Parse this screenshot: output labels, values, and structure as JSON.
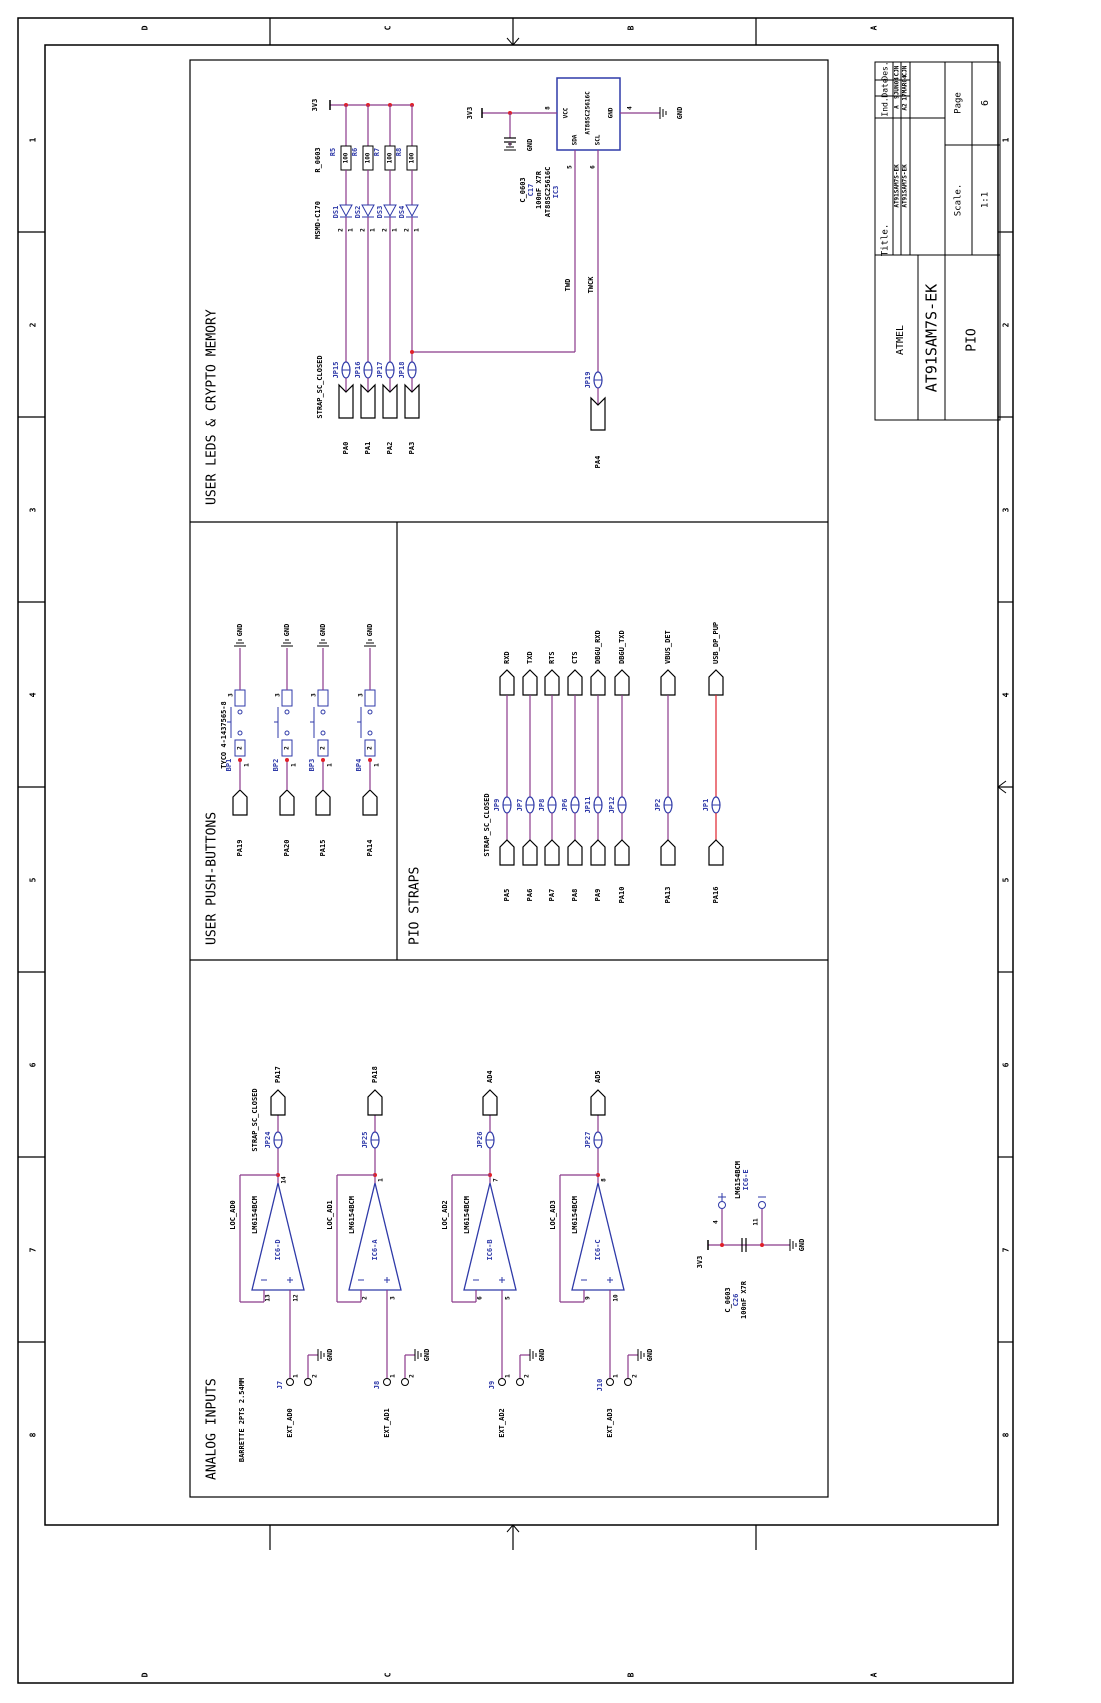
{
  "frame": {
    "columns": [
      "D",
      "C",
      "B",
      "A"
    ],
    "rows": [
      "1",
      "2",
      "3",
      "4",
      "5",
      "6",
      "7",
      "8"
    ]
  },
  "title_block": {
    "title_label": "Title.",
    "titles": [
      "AT91SAM7S-EK",
      "AT91SAM7S-EK"
    ],
    "headers": [
      "Ind.",
      "Date",
      "Des."
    ],
    "revisions": [
      [
        "A",
        "9JUN04",
        "CJN"
      ],
      [
        "A2",
        "17MAR04",
        "CJN"
      ]
    ],
    "company": "ATMEL",
    "board": "AT91SAM7S-EK",
    "sheet": "PIO",
    "scale_label": "Scale.",
    "scale": "1:1",
    "page_label": "Page",
    "page": "6"
  },
  "leds": {
    "title": "USER LEDS & CRYPTO MEMORY",
    "supply": "3V3",
    "resistor_package": "R_0603",
    "resistors": [
      "R5",
      "R6",
      "R7",
      "R8"
    ],
    "resistor_value": "100",
    "led_part": "MSMD-C170",
    "leds": [
      "DS1",
      "DS2",
      "DS3",
      "DS4"
    ],
    "led_pins": [
      "2",
      "1"
    ],
    "strap": "STRAP_SC_CLOSED",
    "jumpers": [
      "JP15",
      "JP16",
      "JP17",
      "JP18"
    ],
    "ports": [
      "PA0",
      "PA1",
      "PA2",
      "PA3"
    ],
    "memory": {
      "part": "AT88SC25616C",
      "ref": "IC3",
      "pins": [
        "VCC",
        "SDA",
        "SCL",
        "GND"
      ],
      "pin_numbers": [
        "8",
        "5",
        "6",
        "4"
      ],
      "supply": "3V3",
      "ground": "GND",
      "cap_package": "C_0603",
      "cap_ref": "C17",
      "cap_value": "100nF X7R",
      "cap_ground": "GND",
      "nets": [
        "TWD",
        "TWCK"
      ],
      "jumper": "JP19",
      "port": "PA4"
    }
  },
  "buttons": {
    "title": "USER PUSH-BUTTONS",
    "part": "TYCO 4-1437565-8",
    "buttons": [
      "BP1",
      "BP2",
      "BP3",
      "BP4"
    ],
    "ports": [
      "PA19",
      "PA20",
      "PA15",
      "PA14"
    ],
    "ground": "GND",
    "pin_numbers": [
      "1",
      "2",
      "3"
    ]
  },
  "straps": {
    "title": "PIO STRAPS",
    "strap": "STRAP_SC_CLOSED",
    "jumpers": [
      "JP9",
      "JP7",
      "JP8",
      "JP6",
      "JP11",
      "JP12",
      "JP2",
      "JP1"
    ],
    "ports": [
      "PA5",
      "PA6",
      "PA7",
      "PA8",
      "PA9",
      "PA10",
      "PA13",
      "PA16"
    ],
    "signals": [
      "RXD",
      "TXD",
      "RTS",
      "CTS",
      "DBGU_RXD",
      "DBGU_TXD",
      "VBUS_DET",
      "USB_DP_PUP"
    ]
  },
  "analog": {
    "title": "ANALOG INPUTS",
    "connector_part": "BARRETTE 2PTS 2.54MM",
    "strap": "STRAP_SC_CLOSED",
    "amp_part": "LM6154BCM",
    "ground": "GND",
    "connector_pins": [
      "1",
      "2"
    ],
    "channels": [
      {
        "ref": "IC6-D",
        "loc": "LOC_AD0",
        "jumper": "JP24",
        "port": "PA17",
        "connector": "J7",
        "input": "EXT_AD0",
        "pins": [
          "13",
          "12",
          "14"
        ]
      },
      {
        "ref": "IC6-A",
        "loc": "LOC_AD1",
        "jumper": "JP25",
        "port": "PA18",
        "connector": "J8",
        "input": "EXT_AD1",
        "pins": [
          "2",
          "3",
          "1"
        ]
      },
      {
        "ref": "IC6-B",
        "loc": "LOC_AD2",
        "jumper": "JP26",
        "port": "AD4",
        "connector": "J9",
        "input": "EXT_AD2",
        "pins": [
          "6",
          "5",
          "7"
        ]
      },
      {
        "ref": "IC6-C",
        "loc": "LOC_AD3",
        "jumper": "JP27",
        "port": "AD5",
        "connector": "J10",
        "input": "EXT_AD3",
        "pins": [
          "9",
          "10",
          "8"
        ]
      }
    ],
    "power": {
      "ref": "IC6-E",
      "part": "LM6154BCM",
      "supply": "3V3",
      "pins": [
        "4",
        "11"
      ],
      "cap_package": "C_0603",
      "cap_ref": "C26",
      "cap_value": "100nF X7R",
      "ground": "GND"
    }
  }
}
